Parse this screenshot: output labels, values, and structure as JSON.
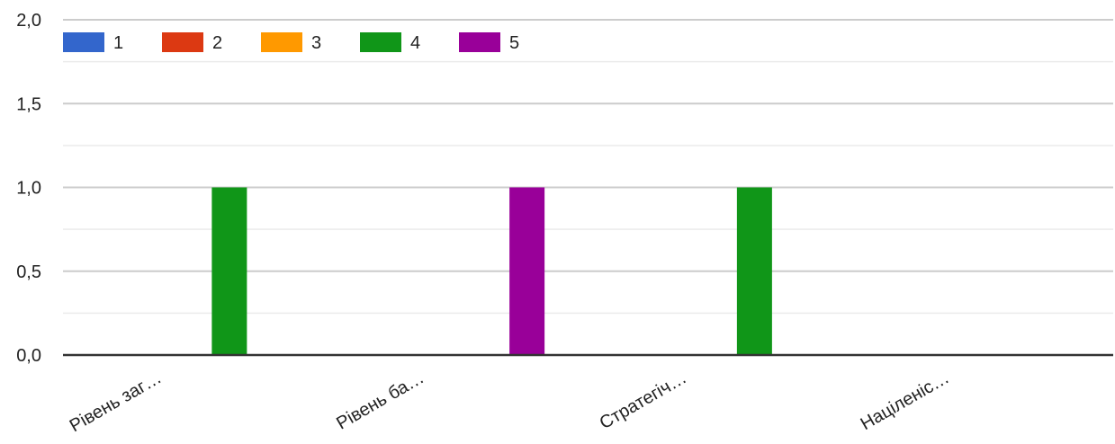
{
  "chart_data": {
    "type": "bar",
    "categories": [
      "Рівень заг…",
      "Рівень ба…",
      "Стратегіч…",
      "Націленіс…"
    ],
    "series": [
      {
        "name": "1",
        "color": "#3366cc",
        "values": [
          0,
          0,
          0,
          0
        ]
      },
      {
        "name": "2",
        "color": "#dc3912",
        "values": [
          0,
          0,
          0,
          0
        ]
      },
      {
        "name": "3",
        "color": "#ff9900",
        "values": [
          0,
          0,
          0,
          0
        ]
      },
      {
        "name": "4",
        "color": "#109618",
        "values": [
          1,
          0,
          1,
          0
        ]
      },
      {
        "name": "5",
        "color": "#990099",
        "values": [
          0,
          1,
          0,
          0
        ]
      }
    ],
    "y_ticks": [
      "0,0",
      "0,5",
      "1,0",
      "1,5",
      "2,0"
    ],
    "y_tick_values": [
      0,
      0.5,
      1,
      1.5,
      2
    ],
    "ylim": [
      0,
      2
    ],
    "grid": true,
    "legend_position": "top-left",
    "x_label_rotation": "slanted"
  }
}
